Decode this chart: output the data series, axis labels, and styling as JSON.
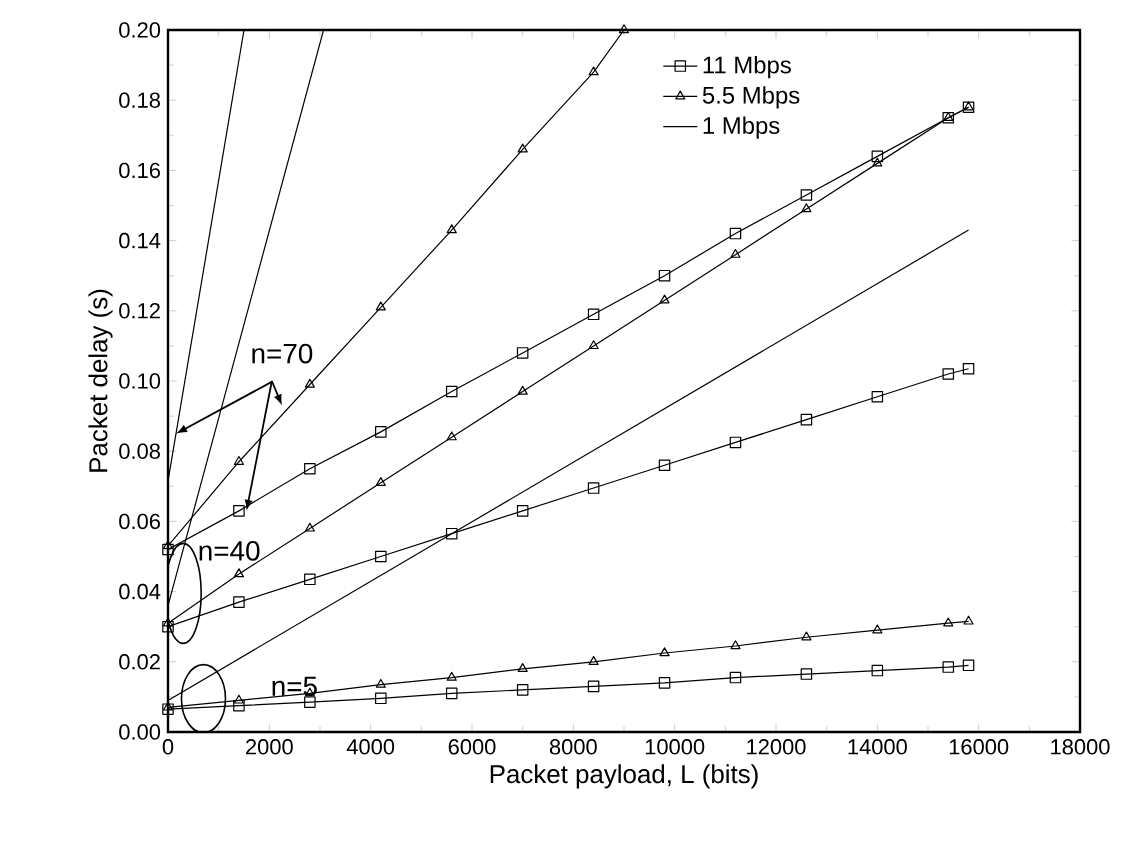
{
  "chart_data": {
    "type": "line",
    "xlabel": "Packet payload, L (bits)",
    "ylabel": "Packet delay (s)",
    "xlim": [
      0,
      18000
    ],
    "ylim": [
      0,
      0.2
    ],
    "xticks": [
      0,
      2000,
      4000,
      6000,
      8000,
      10000,
      12000,
      14000,
      16000,
      18000
    ],
    "yticks": [
      {
        "value": 0,
        "label": "0.00"
      },
      {
        "value": 0.02,
        "label": "0.02"
      },
      {
        "value": 0.04,
        "label": "0.04"
      },
      {
        "value": 0.06,
        "label": "0.06"
      },
      {
        "value": 0.08,
        "label": "0.08"
      },
      {
        "value": 0.1,
        "label": "0.10"
      },
      {
        "value": 0.12,
        "label": "0.12"
      },
      {
        "value": 0.14,
        "label": "0.14"
      },
      {
        "value": 0.16,
        "label": "0.16"
      },
      {
        "value": 0.18,
        "label": "0.18"
      },
      {
        "value": 0.2,
        "label": "0.20"
      }
    ],
    "legend": "top",
    "grid": false,
    "line_style": "solid",
    "series": [
      {
        "name": "11 Mbps",
        "color": "#000000",
        "marker": "square",
        "x": [
          0,
          1400,
          2800,
          4200,
          5600,
          7000,
          8400,
          9800,
          11200,
          12600,
          14000,
          15400,
          15800
        ],
        "values": [
          0.0065,
          0.0075,
          0.0085,
          0.0096,
          0.011,
          0.012,
          0.013,
          0.014,
          0.0155,
          0.0165,
          0.0175,
          0.0185,
          0.019
        ]
      },
      {
        "name": "5.5 Mbps",
        "color": "#000000",
        "marker": "triangle",
        "x": [
          0,
          1400,
          2800,
          4200,
          5600,
          7000,
          8400,
          9800,
          11200,
          12600,
          14000,
          15400,
          15800
        ],
        "values": [
          0.007,
          0.009,
          0.011,
          0.0135,
          0.0155,
          0.018,
          0.02,
          0.0225,
          0.0245,
          0.027,
          0.029,
          0.031,
          0.0315
        ]
      },
      {
        "name": "1 Mbps",
        "color": "#000000",
        "marker": "none",
        "x": [
          0,
          15800
        ],
        "values": [
          0.009,
          0.143
        ]
      },
      {
        "color": "#000000",
        "marker": "square",
        "x": [
          0,
          1400,
          2800,
          4200,
          5600,
          7000,
          8400,
          9800,
          11200,
          12600,
          14000,
          15400,
          15800
        ],
        "values": [
          0.03,
          0.037,
          0.0435,
          0.05,
          0.0565,
          0.063,
          0.0695,
          0.076,
          0.0825,
          0.089,
          0.0955,
          0.102,
          0.1035
        ]
      },
      {
        "color": "#000000",
        "marker": "triangle",
        "x": [
          0,
          1400,
          2800,
          4200,
          5600,
          7000,
          8400,
          9800,
          11200,
          12600,
          14000,
          15400,
          15800
        ],
        "values": [
          0.031,
          0.045,
          0.058,
          0.071,
          0.084,
          0.097,
          0.11,
          0.123,
          0.136,
          0.149,
          0.162,
          0.175,
          0.178
        ]
      },
      {
        "color": "#000000",
        "marker": "none",
        "x": [
          0,
          3070
        ],
        "values": [
          0.036,
          0.2
        ]
      },
      {
        "color": "#000000",
        "marker": "square",
        "x": [
          0,
          1400,
          2800,
          4200,
          5600,
          7000,
          8400,
          9800,
          11200,
          12600,
          14000,
          15400,
          15800
        ],
        "values": [
          0.052,
          0.063,
          0.075,
          0.0855,
          0.097,
          0.108,
          0.119,
          0.13,
          0.142,
          0.153,
          0.164,
          0.175,
          0.178
        ]
      },
      {
        "color": "#000000",
        "marker": "triangle",
        "x": [
          0,
          1400,
          2800,
          4200,
          5600,
          7000,
          8400,
          9000
        ],
        "values": [
          0.053,
          0.077,
          0.099,
          0.121,
          0.143,
          0.166,
          0.188,
          0.2
        ]
      },
      {
        "color": "#000000",
        "marker": "none",
        "x": [
          0,
          1500
        ],
        "values": [
          0.0715,
          0.2
        ]
      }
    ],
    "annotations": [
      {
        "text": "n=70",
        "x": 160,
        "y": 0.085
      },
      "n=40",
      "n=5"
    ]
  }
}
